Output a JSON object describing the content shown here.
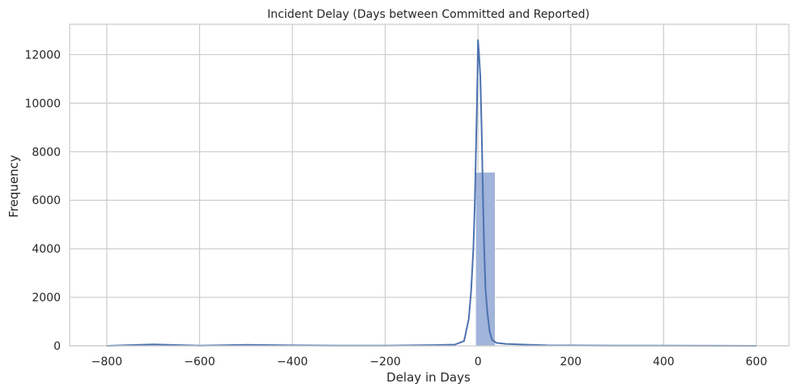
{
  "chart_data": {
    "type": "bar",
    "subtype": "histogram with kde line",
    "title": "Incident Delay (Days between Committed and Reported)",
    "xlabel": "Delay in Days",
    "ylabel": "Frequency",
    "xlim": [
      -880,
      670
    ],
    "ylim": [
      0,
      13250
    ],
    "xticks": [
      -800,
      -600,
      -400,
      -200,
      0,
      200,
      400,
      600
    ],
    "xtick_labels": [
      "−800",
      "−600",
      "−400",
      "−200",
      "0",
      "200",
      "400",
      "600"
    ],
    "yticks": [
      0,
      2000,
      4000,
      6000,
      8000,
      10000,
      12000
    ],
    "ytick_labels": [
      "0",
      "2000",
      "4000",
      "6000",
      "8000",
      "10000",
      "12000"
    ],
    "grid": true,
    "colors": {
      "bar_fill": "#a1b4d9",
      "line": "#4c72b0",
      "grid": "#cccccc",
      "spine": "#cccccc"
    },
    "bars": [
      {
        "x0": -5,
        "x1": 37,
        "value": 7150
      },
      {
        "x0": -46,
        "x1": -5,
        "value": 15
      },
      {
        "x0": 37,
        "x1": 79,
        "value": 25
      },
      {
        "x0": 79,
        "x1": 121,
        "value": 8
      }
    ],
    "kde": {
      "x": [
        -800,
        -700,
        -600,
        -500,
        -400,
        -300,
        -200,
        -100,
        -50,
        -30,
        -20,
        -15,
        -10,
        -7,
        -5,
        -3,
        -1,
        0,
        2,
        5,
        8,
        10,
        13,
        16,
        20,
        25,
        30,
        40,
        60,
        100,
        150,
        200,
        300,
        400,
        500,
        600
      ],
      "y": [
        0,
        60,
        10,
        40,
        20,
        10,
        10,
        30,
        50,
        200,
        1100,
        2200,
        4000,
        5800,
        7500,
        9300,
        11200,
        12600,
        12100,
        11100,
        8800,
        6800,
        4200,
        2400,
        1400,
        600,
        250,
        120,
        80,
        50,
        20,
        15,
        10,
        8,
        5,
        0
      ]
    }
  }
}
